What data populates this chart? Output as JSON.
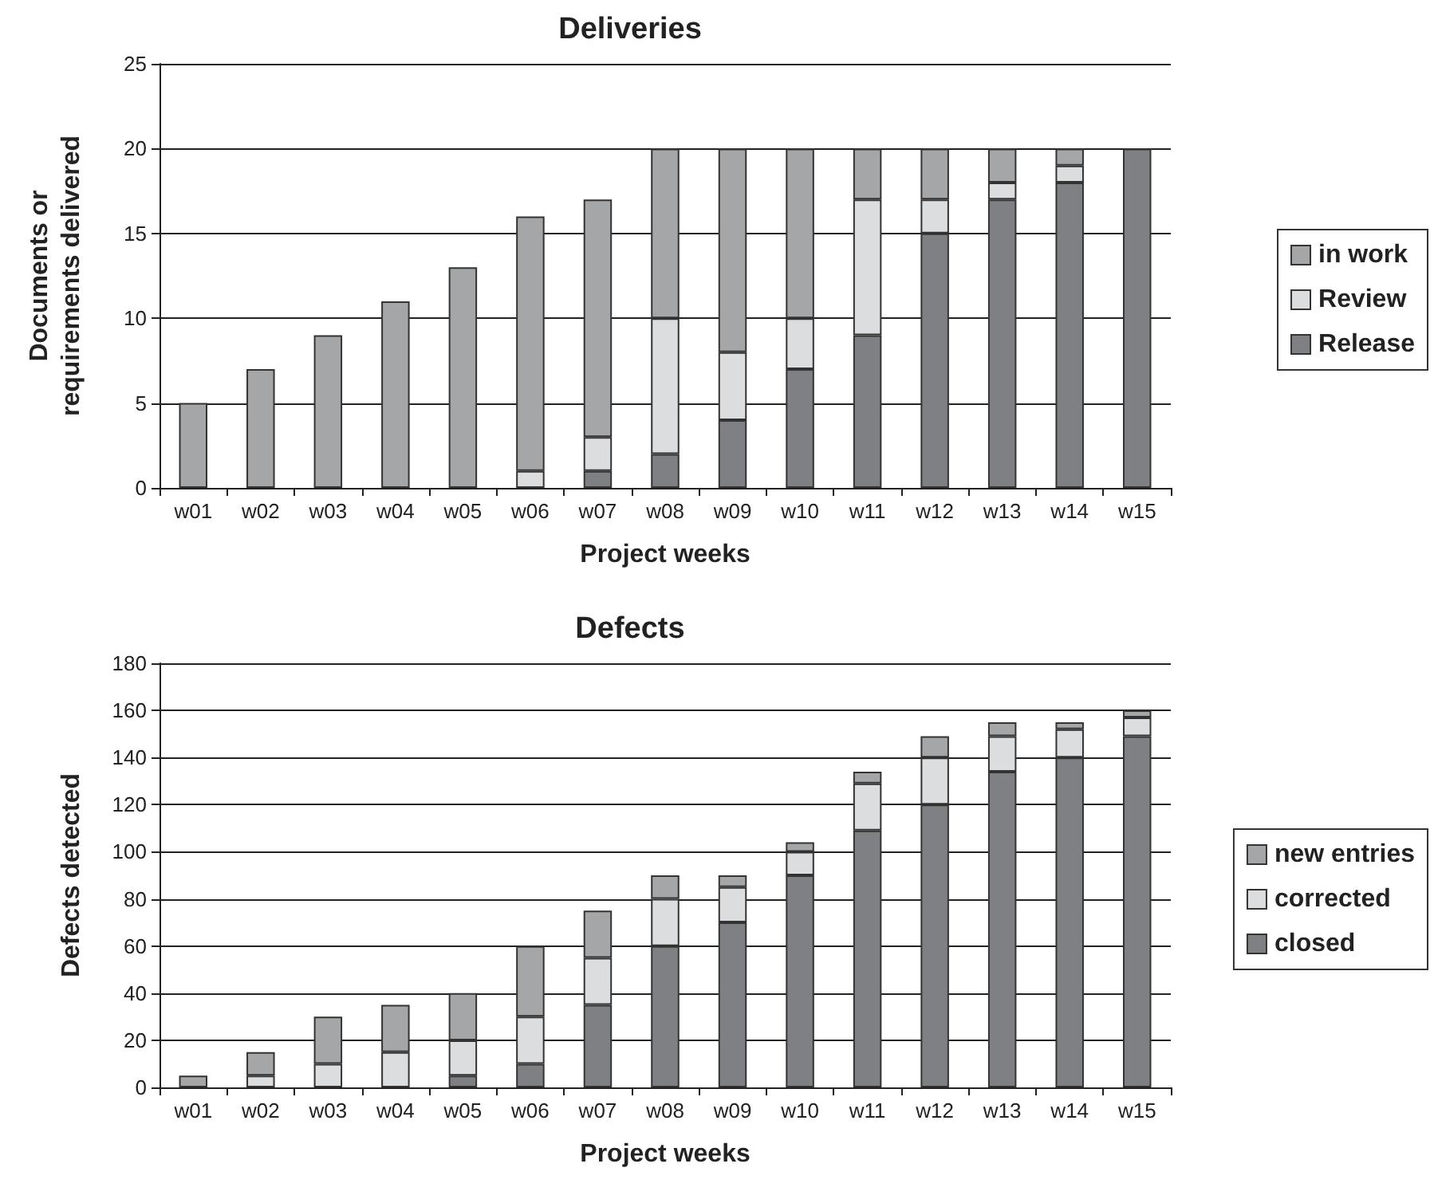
{
  "chart_data": [
    {
      "type": "bar",
      "title": "Deliveries",
      "xlabel": "Project weeks",
      "ylabel": "Documents or\nrequirements delivered",
      "categories": [
        "w01",
        "w02",
        "w03",
        "w04",
        "w05",
        "w06",
        "w07",
        "w08",
        "w09",
        "w10",
        "w11",
        "w12",
        "w13",
        "w14",
        "w15"
      ],
      "stacked": true,
      "ylim": [
        0,
        25
      ],
      "yticks": [
        0,
        5,
        10,
        15,
        20,
        25
      ],
      "grid": "y",
      "legend": "right",
      "series": [
        {
          "name": "Release",
          "color": "#7f8084",
          "values": [
            0,
            0,
            0,
            0,
            0,
            0,
            1,
            2,
            4,
            7,
            9,
            15,
            17,
            18,
            20
          ]
        },
        {
          "name": "Review",
          "color": "#dcdddf",
          "values": [
            0,
            0,
            0,
            0,
            0,
            1,
            2,
            8,
            4,
            3,
            8,
            2,
            1,
            1,
            0
          ]
        },
        {
          "name": "in work",
          "color": "#a5a6a8",
          "values": [
            5,
            7,
            9,
            11,
            13,
            15,
            14,
            10,
            12,
            10,
            3,
            3,
            2,
            1,
            0
          ]
        }
      ]
    },
    {
      "type": "bar",
      "title": "Defects",
      "xlabel": "Project weeks",
      "ylabel": "Defects detected",
      "categories": [
        "w01",
        "w02",
        "w03",
        "w04",
        "w05",
        "w06",
        "w07",
        "w08",
        "w09",
        "w10",
        "w11",
        "w12",
        "w13",
        "w14",
        "w15"
      ],
      "stacked": true,
      "ylim": [
        0,
        180
      ],
      "yticks": [
        0,
        20,
        40,
        60,
        80,
        100,
        120,
        140,
        160,
        180
      ],
      "grid": "y",
      "legend": "right",
      "series": [
        {
          "name": "closed",
          "color": "#7f8084",
          "values": [
            0,
            0,
            0,
            0,
            5,
            10,
            35,
            60,
            70,
            90,
            109,
            120,
            134,
            140,
            149
          ]
        },
        {
          "name": "corrected",
          "color": "#dcdddf",
          "values": [
            0,
            5,
            10,
            15,
            15,
            20,
            20,
            20,
            15,
            10,
            20,
            20,
            15,
            12,
            8
          ]
        },
        {
          "name": "new entries",
          "color": "#a5a6a8",
          "values": [
            5,
            10,
            20,
            20,
            20,
            30,
            20,
            10,
            5,
            4,
            5,
            9,
            6,
            3,
            3
          ]
        }
      ]
    }
  ]
}
